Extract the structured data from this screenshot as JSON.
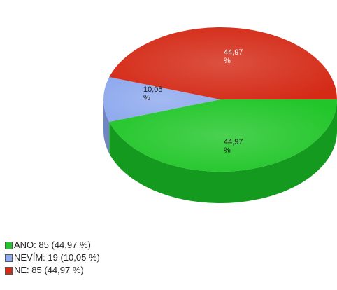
{
  "chart_data": {
    "type": "pie",
    "slices": [
      {
        "label": "ANO",
        "count": 85,
        "percent": 44.97,
        "value_label": "44,97\n%",
        "legend_text": "ANO: 85 (44,97 %)",
        "color": "#22c62a",
        "side_color": "#149a1e"
      },
      {
        "label": "NEVÍM",
        "count": 19,
        "percent": 10.05,
        "value_label": "10,05\n%",
        "legend_text": "NEVÍM: 19 (10,05 %)",
        "color": "#8faaee",
        "side_color": "#6f86c0"
      },
      {
        "label": "NE",
        "count": 85,
        "percent": 44.97,
        "value_label": "44,97\n%",
        "legend_text": "NE: 85 (44,97 %)",
        "color": "#d42a16",
        "side_color": "#a41a0c"
      }
    ],
    "legend_placement": "bottom-left",
    "three_d": true
  }
}
